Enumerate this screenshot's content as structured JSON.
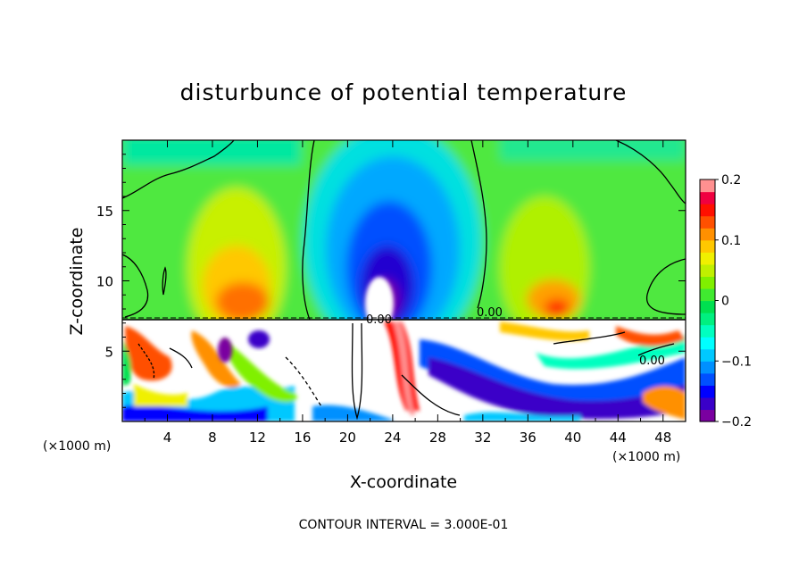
{
  "chart_data": {
    "type": "heatmap",
    "title": "disturbunce of potential temperature",
    "xlabel": "X-coordinate",
    "ylabel": "Z-coordinate",
    "x_unit_left": "(×1000 m)",
    "x_unit_right": "(×1000 m)",
    "xlim": [
      0,
      50
    ],
    "ylim": [
      0,
      20
    ],
    "x_ticks": [
      4,
      8,
      12,
      16,
      20,
      24,
      28,
      32,
      36,
      40,
      44,
      48
    ],
    "y_ticks": [
      5,
      10,
      15
    ],
    "colorbar": {
      "range": [
        -0.2,
        0.2
      ],
      "tick_values": [
        0.2,
        0.1,
        0,
        -0.1,
        -0.2
      ],
      "tick_labels": [
        "0.2",
        "0.1",
        "0",
        "−0.1",
        "−0.2"
      ],
      "colors": [
        "#7a00a0",
        "#3a00c8",
        "#0000ff",
        "#0050ff",
        "#0090ff",
        "#00c8ff",
        "#00ffff",
        "#00ffc0",
        "#00f080",
        "#00e050",
        "#40ea30",
        "#80f000",
        "#c0f000",
        "#f0f000",
        "#ffc800",
        "#ff9000",
        "#ff5000",
        "#ff1000",
        "#f00040",
        "#ff9090"
      ]
    },
    "contour_labels": [
      "0.00",
      "0.00",
      "0.00"
    ],
    "footer": "CONTOUR INTERVAL = 3.000E-01"
  }
}
